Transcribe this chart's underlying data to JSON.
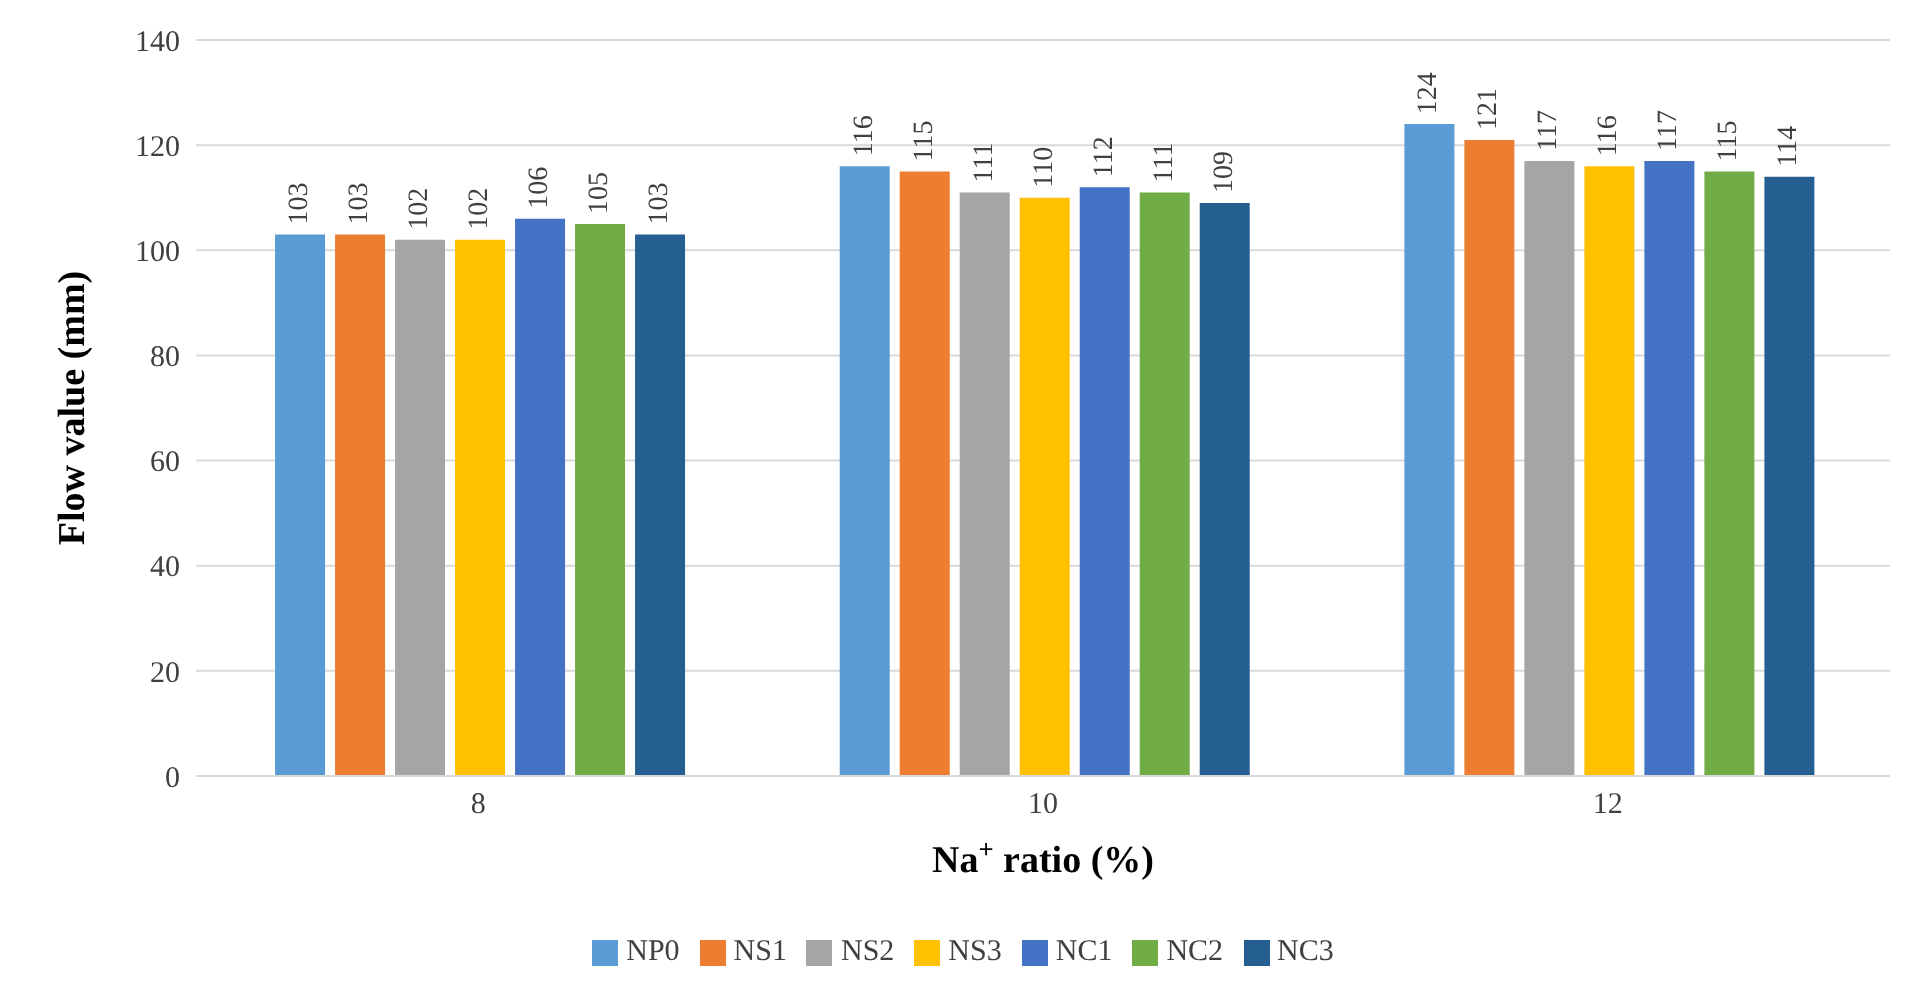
{
  "chart_data": {
    "type": "bar",
    "xlabel": "Na$^{+}$ ratio (%)",
    "ylabel": "Flow value (mm)",
    "categories": [
      "8",
      "10",
      "12"
    ],
    "series": [
      {
        "name": "NP0",
        "color": "#5b9bd5",
        "values": [
          103,
          116,
          124
        ]
      },
      {
        "name": "NS1",
        "color": "#ed7d31",
        "values": [
          103,
          115,
          121
        ]
      },
      {
        "name": "NS2",
        "color": "#a5a5a5",
        "values": [
          102,
          111,
          117
        ]
      },
      {
        "name": "NS3",
        "color": "#ffc000",
        "values": [
          102,
          110,
          116
        ]
      },
      {
        "name": "NC1",
        "color": "#4472c4",
        "values": [
          106,
          112,
          117
        ]
      },
      {
        "name": "NC2",
        "color": "#70ad47",
        "values": [
          105,
          111,
          115
        ]
      },
      {
        "name": "NC3",
        "color": "#255e91",
        "values": [
          103,
          109,
          114
        ]
      }
    ],
    "ylim": [
      0,
      140
    ],
    "yticks": [
      0,
      20,
      40,
      60,
      80,
      100,
      120,
      140
    ],
    "grid": "y",
    "legend": "bottom",
    "data_labels": true
  }
}
